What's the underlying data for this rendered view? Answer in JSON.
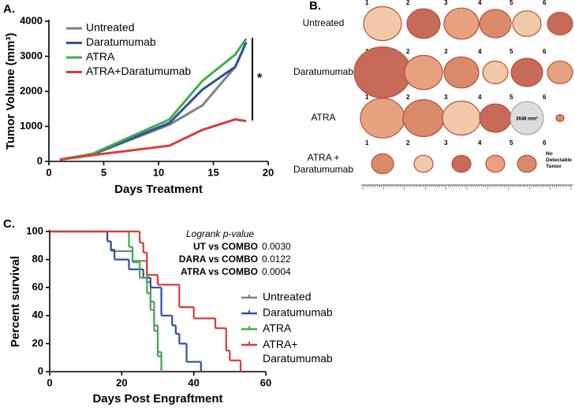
{
  "chart_data": [
    {
      "type": "line",
      "panel_label": "A.",
      "x_label": "Days Treatment",
      "y_label": "Tumor Volume (mm³)",
      "x": [
        1,
        4,
        11,
        14,
        17,
        18
      ],
      "series": [
        {
          "name": "Untreated",
          "color": "#808080",
          "values": [
            50,
            200,
            1050,
            1600,
            2700,
            3400
          ]
        },
        {
          "name": "Daratumumab",
          "color": "#2f4fa2",
          "values": [
            50,
            200,
            1100,
            2050,
            2700,
            3400
          ]
        },
        {
          "name": "ATRA",
          "color": "#3fae49",
          "values": [
            50,
            220,
            1200,
            2300,
            3050,
            3500
          ]
        },
        {
          "name": "ATRA+Daratumumab",
          "color": "#e03a36",
          "values": [
            50,
            180,
            450,
            900,
            1200,
            1150
          ]
        }
      ],
      "xlim": [
        0,
        20
      ],
      "xticks": [
        0,
        5,
        10,
        15,
        20
      ],
      "ylim": [
        0,
        4000
      ],
      "yticks": [
        0,
        1000,
        2000,
        3000,
        4000
      ],
      "annotation": "*"
    },
    {
      "type": "step",
      "panel_label": "C.",
      "x_label": "Days Post Engraftment",
      "y_label": "Percent survival",
      "series": [
        {
          "name": "Untreated",
          "color": "#808080",
          "x": [
            0,
            16,
            17,
            23,
            27,
            28,
            29,
            30,
            31
          ],
          "values": [
            100,
            93,
            86,
            79,
            64,
            50,
            29,
            14,
            0
          ]
        },
        {
          "name": "Daratumumab",
          "color": "#2f4fa2",
          "x": [
            0,
            16,
            17,
            18,
            22,
            26,
            28,
            31,
            34,
            35,
            36,
            38,
            42
          ],
          "values": [
            100,
            93,
            87,
            80,
            73,
            67,
            60,
            40,
            33,
            27,
            20,
            7,
            0
          ]
        },
        {
          "name": "ATRA",
          "color": "#3fae49",
          "x": [
            0,
            22,
            23,
            25,
            27,
            28,
            29,
            30,
            31
          ],
          "values": [
            100,
            89,
            78,
            67,
            56,
            44,
            33,
            11,
            0
          ]
        },
        {
          "name": "ATRA+ Daratumumab",
          "color": "#e03a36",
          "x": [
            0,
            25,
            26,
            27,
            30,
            36,
            40,
            46,
            49,
            50,
            53
          ],
          "values": [
            100,
            92,
            85,
            69,
            62,
            46,
            38,
            31,
            15,
            8,
            0
          ]
        }
      ],
      "xlim": [
        0,
        60
      ],
      "xticks": [
        0,
        20,
        40,
        60
      ],
      "ylim": [
        0,
        100
      ],
      "yticks": [
        0,
        20,
        40,
        60,
        80,
        100
      ],
      "logrank": {
        "title": "Logrank p-value",
        "rows": [
          [
            "UT vs COMBO",
            "0.0030"
          ],
          [
            "DARA vs COMBO",
            "0.0122"
          ],
          [
            "ATRA vs COMBO",
            "0.0004"
          ]
        ]
      }
    }
  ],
  "photo_panel": {
    "panel_label": "B.",
    "rows": [
      "Untreated",
      "Daratumumab",
      "ATRA",
      "ATRA + Daratumumab"
    ],
    "numbers": [
      "1",
      "2",
      "3",
      "4",
      "5",
      "6"
    ],
    "size_note": "3648 mm³",
    "no_tumor": "No Detectable Tumor"
  }
}
